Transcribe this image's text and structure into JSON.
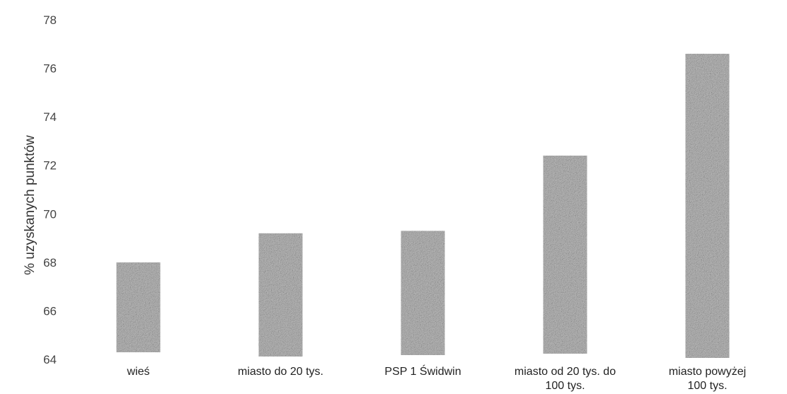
{
  "chart_data": {
    "type": "bar",
    "title": "",
    "xlabel": "",
    "ylabel": "% uzyskanych punktów",
    "ylim": [
      64,
      78
    ],
    "yticks": [
      64,
      66,
      68,
      70,
      72,
      74,
      76,
      78
    ],
    "grid": false,
    "categories": [
      "wieś",
      "miasto do 20 tys.",
      "PSP 1 Świdwin",
      "miasto od 20 tys. do 100 tys.",
      "miasto powyżej 100 tys."
    ],
    "values": [
      68.0,
      69.2,
      69.3,
      72.4,
      76.6
    ],
    "bar_color": "#bdbdbd"
  }
}
